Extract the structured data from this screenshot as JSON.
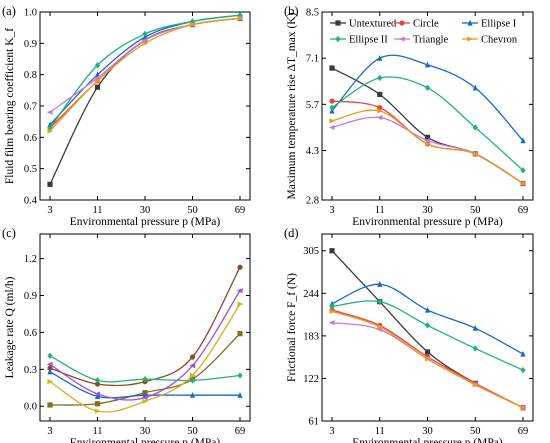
{
  "chart_data": [
    {
      "type": "line",
      "panel_label": "(a)",
      "xlabel": "Environmental pressure  p (MPa)",
      "ylabel": "Fluid film bearing coefficient K_f",
      "categories": [
        "3",
        "11",
        "30",
        "50",
        "69"
      ],
      "ylim": [
        0.4,
        1.0
      ],
      "yticks": [
        "0.4",
        "0.5",
        "0.6",
        "0.7",
        "0.8",
        "0.9",
        "1.0"
      ],
      "series": [
        {
          "name": "Untextured",
          "values": [
            0.45,
            0.76,
            0.91,
            0.96,
            0.98
          ]
        },
        {
          "name": "Circle",
          "values": [
            0.63,
            0.78,
            0.91,
            0.96,
            0.98
          ]
        },
        {
          "name": "Ellipse I",
          "values": [
            0.64,
            0.8,
            0.92,
            0.97,
            0.99
          ]
        },
        {
          "name": "Ellipse II",
          "values": [
            0.63,
            0.83,
            0.93,
            0.97,
            0.99
          ]
        },
        {
          "name": "Triangle",
          "values": [
            0.68,
            0.79,
            0.91,
            0.96,
            0.98
          ]
        },
        {
          "name": "Chevron",
          "values": [
            0.62,
            0.78,
            0.9,
            0.96,
            0.98
          ]
        }
      ]
    },
    {
      "type": "line",
      "panel_label": "(b)",
      "xlabel": "Environmental pressure  p (MPa)",
      "ylabel": "Maximum temperature rise ΔT_max (K)",
      "categories": [
        "3",
        "11",
        "30",
        "50",
        "69"
      ],
      "ylim": [
        2.8,
        8.5
      ],
      "yticks": [
        "2.8",
        "4.3",
        "5.7",
        "7.1",
        "8.5"
      ],
      "series": [
        {
          "name": "Untextured",
          "values": [
            6.8,
            6.0,
            4.7,
            4.2,
            3.3
          ]
        },
        {
          "name": "Circle",
          "values": [
            5.8,
            5.6,
            4.5,
            4.2,
            3.3
          ]
        },
        {
          "name": "Ellipse I",
          "values": [
            5.5,
            7.1,
            6.9,
            6.2,
            4.6
          ]
        },
        {
          "name": "Ellipse II",
          "values": [
            5.6,
            6.5,
            6.2,
            5.0,
            3.7
          ]
        },
        {
          "name": "Triangle",
          "values": [
            5.0,
            5.3,
            4.6,
            4.2,
            3.3
          ]
        },
        {
          "name": "Chevron",
          "values": [
            5.2,
            5.5,
            4.5,
            4.2,
            3.3
          ]
        }
      ]
    },
    {
      "type": "line",
      "panel_label": "(c)",
      "xlabel": "Environmental pressure  p (MPa)",
      "ylabel": "Leakage rate  Q (ml/h)",
      "categories": [
        "3",
        "11",
        "30",
        "50",
        "69"
      ],
      "ylim": [
        -0.12,
        1.4
      ],
      "yticks": [
        "0.0",
        "0.3",
        "0.6",
        "0.9",
        "1.2"
      ],
      "series": [
        {
          "name": "Untextured",
          "values": [
            0.01,
            0.02,
            0.11,
            0.22,
            0.59
          ]
        },
        {
          "name": "Circle",
          "values": [
            0.31,
            0.18,
            0.2,
            0.4,
            1.13
          ]
        },
        {
          "name": "Ellipse I",
          "values": [
            0.28,
            0.08,
            0.09,
            0.09,
            0.09
          ]
        },
        {
          "name": "Ellipse II",
          "values": [
            0.41,
            0.21,
            0.22,
            0.21,
            0.25
          ]
        },
        {
          "name": "Triangle",
          "values": [
            0.34,
            0.1,
            0.07,
            0.33,
            0.94
          ]
        },
        {
          "name": "Chevron",
          "values": [
            0.2,
            -0.04,
            0.04,
            0.25,
            0.83
          ]
        }
      ]
    },
    {
      "type": "line",
      "panel_label": "(d)",
      "xlabel": "Environmental pressure  p (MPa)",
      "ylabel": "Frictional force  F_f (N)",
      "categories": [
        "3",
        "11",
        "30",
        "50",
        "69"
      ],
      "ylim": [
        61,
        329
      ],
      "yticks": [
        "61",
        "122",
        "183",
        "244",
        "305"
      ],
      "series": [
        {
          "name": "Untextured",
          "values": [
            305,
            232,
            160,
            115,
            80
          ]
        },
        {
          "name": "Circle",
          "values": [
            220,
            198,
            153,
            115,
            80
          ]
        },
        {
          "name": "Ellipse I",
          "values": [
            229,
            257,
            220,
            194,
            157
          ]
        },
        {
          "name": "Ellipse II",
          "values": [
            225,
            232,
            198,
            165,
            134
          ]
        },
        {
          "name": "Triangle",
          "values": [
            202,
            192,
            150,
            113,
            80
          ]
        },
        {
          "name": "Chevron",
          "values": [
            218,
            196,
            150,
            113,
            80
          ]
        }
      ]
    }
  ],
  "legend": [
    {
      "name": "Untextured",
      "color": "#3a3a3a"
    },
    {
      "name": "Circle",
      "color": "#e8463d"
    },
    {
      "name": "Ellipse I",
      "color": "#1a66c9"
    },
    {
      "name": "Ellipse II",
      "color": "#1fb17e"
    },
    {
      "name": "Triangle",
      "color": "#c27be0"
    },
    {
      "name": "Chevron",
      "color": "#e89d1d"
    }
  ],
  "curve_colors_c": {
    "Untextured": "#8a6a1a",
    "Circle": "#8b4a2a",
    "Triangle": "#a052c9",
    "Chevron": "#d4b020"
  }
}
